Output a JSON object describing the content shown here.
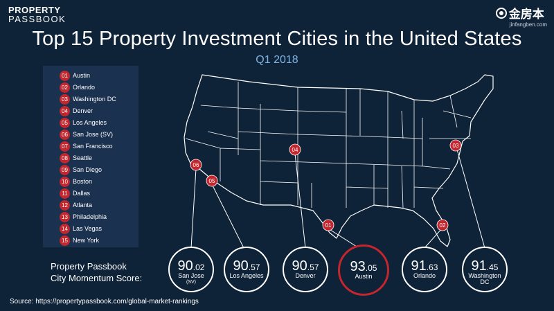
{
  "brand": {
    "left_line1": "PROPERTY",
    "left_line2": "PASSBOOK",
    "right_name": "金房本",
    "right_url": "jinfangben.com"
  },
  "title": "Top 15 Property Investment Cities in the United States",
  "subtitle": "Q1 2018",
  "ranking": [
    {
      "num": "01",
      "city": "Austin"
    },
    {
      "num": "02",
      "city": "Orlando"
    },
    {
      "num": "03",
      "city": "Washington DC"
    },
    {
      "num": "04",
      "city": "Denver"
    },
    {
      "num": "05",
      "city": "Los Angeles"
    },
    {
      "num": "06",
      "city": "San Jose (SV)"
    },
    {
      "num": "07",
      "city": "San Francisco"
    },
    {
      "num": "08",
      "city": "Seattle"
    },
    {
      "num": "09",
      "city": "San Diego"
    },
    {
      "num": "10",
      "city": "Boston"
    },
    {
      "num": "11",
      "city": "Dallas"
    },
    {
      "num": "12",
      "city": "Atlanta"
    },
    {
      "num": "13",
      "city": "Philadelphia"
    },
    {
      "num": "14",
      "city": "Las Vegas"
    },
    {
      "num": "15",
      "city": "New York"
    }
  ],
  "markers": [
    {
      "num": "01",
      "city": "Austin"
    },
    {
      "num": "02",
      "city": "Orlando"
    },
    {
      "num": "03",
      "city": "Washington DC"
    },
    {
      "num": "04",
      "city": "Denver"
    },
    {
      "num": "05",
      "city": "Los Angeles"
    },
    {
      "num": "06",
      "city": "San Jose"
    }
  ],
  "score_label_line1": "Property Passbook",
  "score_label_line2": "City Momentum Score:",
  "scores": [
    {
      "int": "90",
      "dec": ".02",
      "city_line1": "San Jose",
      "city_line2": "(SV)"
    },
    {
      "int": "90",
      "dec": ".57",
      "city_line1": "Los Angeles",
      "city_line2": ""
    },
    {
      "int": "90",
      "dec": ".57",
      "city_line1": "Denver",
      "city_line2": ""
    },
    {
      "int": "93",
      "dec": ".05",
      "city_line1": "Austin",
      "city_line2": ""
    },
    {
      "int": "91",
      "dec": ".63",
      "city_line1": "Orlando",
      "city_line2": ""
    },
    {
      "int": "91",
      "dec": ".45",
      "city_line1": "Washington",
      "city_line2": "DC"
    }
  ],
  "source": "Source: https://propertypassbook.com/global-market-rankings",
  "colors": {
    "background": "#0e2238",
    "legend_panel": "#1b3150",
    "accent_red": "#c4262e",
    "subtitle_blue": "#7fb6e6"
  }
}
